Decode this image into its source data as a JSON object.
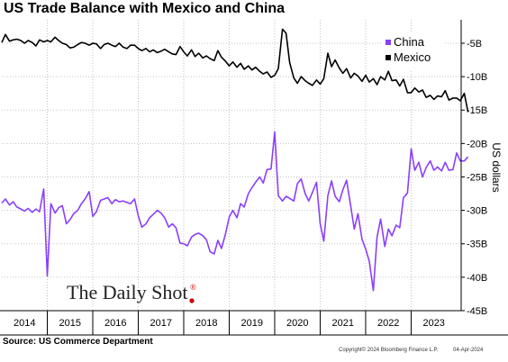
{
  "chart_data": {
    "type": "line",
    "title": "US Trade Balance with Mexico and China",
    "ylabel": "US dollars",
    "ylim": [
      -45,
      -1.5
    ],
    "x_range": [
      2014.0,
      2024.1
    ],
    "y_ticks": [
      {
        "value": -5,
        "label": "-5B"
      },
      {
        "value": -10,
        "label": "-10B"
      },
      {
        "value": -15,
        "label": "-15B"
      },
      {
        "value": -20,
        "label": "-20B"
      },
      {
        "value": -25,
        "label": "-25B"
      },
      {
        "value": -30,
        "label": "-30B"
      },
      {
        "value": -35,
        "label": "-35B"
      },
      {
        "value": -40,
        "label": "-40B"
      },
      {
        "value": -45,
        "label": "-45B"
      }
    ],
    "x_ticks": [
      {
        "value": 2014.5,
        "label": "2014"
      },
      {
        "value": 2015.5,
        "label": "2015"
      },
      {
        "value": 2016.5,
        "label": "2016"
      },
      {
        "value": 2017.5,
        "label": "2017"
      },
      {
        "value": 2018.5,
        "label": "2018"
      },
      {
        "value": 2019.5,
        "label": "2019"
      },
      {
        "value": 2020.5,
        "label": "2020"
      },
      {
        "value": 2021.5,
        "label": "2021"
      },
      {
        "value": 2022.5,
        "label": "2022"
      },
      {
        "value": 2023.5,
        "label": "2023"
      }
    ],
    "x_gridlines": [
      2015,
      2016,
      2017,
      2018,
      2019,
      2020,
      2021,
      2022,
      2023
    ],
    "grid": true,
    "legend_position": "top-right",
    "series": [
      {
        "name": "China",
        "color": "#8a3ffc",
        "points": [
          [
            2014.0,
            -28.9
          ],
          [
            2014.08,
            -28.3
          ],
          [
            2014.17,
            -29.2
          ],
          [
            2014.25,
            -28.7
          ],
          [
            2014.33,
            -29.5
          ],
          [
            2014.42,
            -29.8
          ],
          [
            2014.5,
            -30.1
          ],
          [
            2014.58,
            -29.7
          ],
          [
            2014.67,
            -30.3
          ],
          [
            2014.75,
            -29.8
          ],
          [
            2014.83,
            -30.2
          ],
          [
            2014.92,
            -26.8
          ],
          [
            2015.0,
            -39.8
          ],
          [
            2015.08,
            -29.0
          ],
          [
            2015.17,
            -30.4
          ],
          [
            2015.25,
            -29.6
          ],
          [
            2015.33,
            -29.3
          ],
          [
            2015.42,
            -32.0
          ],
          [
            2015.5,
            -31.4
          ],
          [
            2015.58,
            -30.5
          ],
          [
            2015.67,
            -30.0
          ],
          [
            2015.75,
            -29.0
          ],
          [
            2015.83,
            -28.3
          ],
          [
            2015.92,
            -27.2
          ],
          [
            2016.0,
            -30.9
          ],
          [
            2016.08,
            -30.2
          ],
          [
            2016.17,
            -28.5
          ],
          [
            2016.25,
            -28.3
          ],
          [
            2016.33,
            -28.1
          ],
          [
            2016.42,
            -29.0
          ],
          [
            2016.5,
            -28.4
          ],
          [
            2016.58,
            -28.7
          ],
          [
            2016.67,
            -28.6
          ],
          [
            2016.75,
            -28.8
          ],
          [
            2016.83,
            -29.0
          ],
          [
            2016.92,
            -28.3
          ],
          [
            2017.0,
            -30.8
          ],
          [
            2017.08,
            -32.5
          ],
          [
            2017.17,
            -32.0
          ],
          [
            2017.25,
            -31.1
          ],
          [
            2017.33,
            -30.6
          ],
          [
            2017.42,
            -30.0
          ],
          [
            2017.5,
            -30.4
          ],
          [
            2017.58,
            -31.1
          ],
          [
            2017.67,
            -32.5
          ],
          [
            2017.75,
            -32.0
          ],
          [
            2017.83,
            -32.6
          ],
          [
            2017.92,
            -34.9
          ],
          [
            2018.0,
            -35.0
          ],
          [
            2018.08,
            -35.3
          ],
          [
            2018.17,
            -34.0
          ],
          [
            2018.25,
            -33.6
          ],
          [
            2018.33,
            -33.4
          ],
          [
            2018.42,
            -33.8
          ],
          [
            2018.5,
            -34.4
          ],
          [
            2018.58,
            -36.2
          ],
          [
            2018.67,
            -36.5
          ],
          [
            2018.75,
            -34.5
          ],
          [
            2018.83,
            -35.7
          ],
          [
            2018.92,
            -33.5
          ],
          [
            2019.0,
            -31.0
          ],
          [
            2019.08,
            -30.0
          ],
          [
            2019.17,
            -31.1
          ],
          [
            2019.25,
            -29.0
          ],
          [
            2019.33,
            -29.5
          ],
          [
            2019.42,
            -27.5
          ],
          [
            2019.5,
            -26.6
          ],
          [
            2019.58,
            -25.8
          ],
          [
            2019.67,
            -25.0
          ],
          [
            2019.75,
            -25.9
          ],
          [
            2019.83,
            -23.9
          ],
          [
            2019.92,
            -23.8
          ],
          [
            2020.0,
            -18.3
          ],
          [
            2020.08,
            -27.8
          ],
          [
            2020.17,
            -28.6
          ],
          [
            2020.25,
            -27.9
          ],
          [
            2020.33,
            -28.2
          ],
          [
            2020.42,
            -28.6
          ],
          [
            2020.5,
            -26.0
          ],
          [
            2020.58,
            -25.3
          ],
          [
            2020.67,
            -27.5
          ],
          [
            2020.75,
            -28.6
          ],
          [
            2020.83,
            -27.3
          ],
          [
            2020.92,
            -25.8
          ],
          [
            2021.0,
            -32.0
          ],
          [
            2021.08,
            -34.6
          ],
          [
            2021.17,
            -27.8
          ],
          [
            2021.25,
            -25.6
          ],
          [
            2021.33,
            -27.9
          ],
          [
            2021.42,
            -28.7
          ],
          [
            2021.5,
            -26.9
          ],
          [
            2021.58,
            -25.5
          ],
          [
            2021.67,
            -29.3
          ],
          [
            2021.75,
            -32.8
          ],
          [
            2021.83,
            -30.5
          ],
          [
            2021.92,
            -34.3
          ],
          [
            2022.0,
            -35.8
          ],
          [
            2022.08,
            -37.6
          ],
          [
            2022.17,
            -42.0
          ],
          [
            2022.25,
            -34.0
          ],
          [
            2022.33,
            -31.3
          ],
          [
            2022.42,
            -35.4
          ],
          [
            2022.5,
            -32.8
          ],
          [
            2022.58,
            -33.8
          ],
          [
            2022.67,
            -32.2
          ],
          [
            2022.75,
            -32.6
          ],
          [
            2022.83,
            -28.1
          ],
          [
            2022.92,
            -27.4
          ],
          [
            2023.0,
            -20.8
          ],
          [
            2023.08,
            -24.0
          ],
          [
            2023.17,
            -22.8
          ],
          [
            2023.25,
            -25.0
          ],
          [
            2023.33,
            -23.6
          ],
          [
            2023.42,
            -22.6
          ],
          [
            2023.5,
            -24.0
          ],
          [
            2023.58,
            -23.5
          ],
          [
            2023.67,
            -24.1
          ],
          [
            2023.75,
            -22.8
          ],
          [
            2023.83,
            -24.0
          ],
          [
            2023.92,
            -23.9
          ],
          [
            2024.0,
            -21.4
          ],
          [
            2024.08,
            -22.6
          ],
          [
            2024.17,
            -22.6
          ],
          [
            2024.25,
            -22.0
          ]
        ]
      },
      {
        "name": "Mexico",
        "color": "#000000",
        "points": [
          [
            2014.0,
            -4.9
          ],
          [
            2014.08,
            -3.7
          ],
          [
            2014.17,
            -4.7
          ],
          [
            2014.25,
            -4.5
          ],
          [
            2014.33,
            -4.4
          ],
          [
            2014.42,
            -4.6
          ],
          [
            2014.5,
            -5.0
          ],
          [
            2014.58,
            -4.6
          ],
          [
            2014.67,
            -4.9
          ],
          [
            2014.75,
            -5.4
          ],
          [
            2014.83,
            -4.5
          ],
          [
            2014.92,
            -4.8
          ],
          [
            2015.0,
            -4.6
          ],
          [
            2015.08,
            -4.8
          ],
          [
            2015.17,
            -4.1
          ],
          [
            2015.25,
            -4.6
          ],
          [
            2015.33,
            -5.0
          ],
          [
            2015.42,
            -5.2
          ],
          [
            2015.5,
            -5.7
          ],
          [
            2015.58,
            -5.6
          ],
          [
            2015.67,
            -5.2
          ],
          [
            2015.75,
            -4.9
          ],
          [
            2015.83,
            -5.0
          ],
          [
            2015.92,
            -5.3
          ],
          [
            2016.0,
            -5.0
          ],
          [
            2016.08,
            -5.1
          ],
          [
            2016.17,
            -5.8
          ],
          [
            2016.25,
            -5.2
          ],
          [
            2016.33,
            -5.0
          ],
          [
            2016.42,
            -5.3
          ],
          [
            2016.5,
            -5.5
          ],
          [
            2016.58,
            -5.0
          ],
          [
            2016.67,
            -5.6
          ],
          [
            2016.75,
            -5.8
          ],
          [
            2016.83,
            -5.3
          ],
          [
            2016.92,
            -5.3
          ],
          [
            2017.0,
            -5.8
          ],
          [
            2017.08,
            -6.1
          ],
          [
            2017.17,
            -5.8
          ],
          [
            2017.25,
            -6.3
          ],
          [
            2017.33,
            -6.0
          ],
          [
            2017.42,
            -6.4
          ],
          [
            2017.5,
            -6.2
          ],
          [
            2017.58,
            -5.9
          ],
          [
            2017.67,
            -6.3
          ],
          [
            2017.75,
            -6.6
          ],
          [
            2017.83,
            -6.7
          ],
          [
            2017.92,
            -5.5
          ],
          [
            2018.0,
            -6.3
          ],
          [
            2018.08,
            -6.9
          ],
          [
            2018.17,
            -6.0
          ],
          [
            2018.25,
            -7.0
          ],
          [
            2018.33,
            -6.5
          ],
          [
            2018.42,
            -7.2
          ],
          [
            2018.5,
            -6.9
          ],
          [
            2018.58,
            -7.3
          ],
          [
            2018.67,
            -7.6
          ],
          [
            2018.75,
            -6.1
          ],
          [
            2018.83,
            -7.1
          ],
          [
            2018.92,
            -7.7
          ],
          [
            2019.0,
            -8.4
          ],
          [
            2019.08,
            -7.8
          ],
          [
            2019.17,
            -8.6
          ],
          [
            2019.25,
            -8.0
          ],
          [
            2019.33,
            -8.9
          ],
          [
            2019.42,
            -8.4
          ],
          [
            2019.5,
            -9.0
          ],
          [
            2019.58,
            -8.6
          ],
          [
            2019.67,
            -9.2
          ],
          [
            2019.75,
            -9.6
          ],
          [
            2019.83,
            -9.3
          ],
          [
            2019.92,
            -10.1
          ],
          [
            2020.0,
            -9.8
          ],
          [
            2020.08,
            -8.8
          ],
          [
            2020.17,
            -2.9
          ],
          [
            2020.25,
            -3.5
          ],
          [
            2020.33,
            -7.9
          ],
          [
            2020.42,
            -10.2
          ],
          [
            2020.5,
            -11.0
          ],
          [
            2020.58,
            -10.0
          ],
          [
            2020.67,
            -10.6
          ],
          [
            2020.75,
            -11.0
          ],
          [
            2020.83,
            -11.3
          ],
          [
            2020.92,
            -10.5
          ],
          [
            2021.0,
            -11.1
          ],
          [
            2021.08,
            -10.3
          ],
          [
            2021.17,
            -6.5
          ],
          [
            2021.25,
            -8.5
          ],
          [
            2021.33,
            -7.5
          ],
          [
            2021.42,
            -8.7
          ],
          [
            2021.5,
            -9.5
          ],
          [
            2021.58,
            -8.8
          ],
          [
            2021.67,
            -10.2
          ],
          [
            2021.75,
            -9.5
          ],
          [
            2021.83,
            -9.9
          ],
          [
            2021.92,
            -10.7
          ],
          [
            2022.0,
            -9.8
          ],
          [
            2022.08,
            -10.8
          ],
          [
            2022.17,
            -10.3
          ],
          [
            2022.25,
            -11.2
          ],
          [
            2022.33,
            -10.0
          ],
          [
            2022.42,
            -10.5
          ],
          [
            2022.5,
            -9.2
          ],
          [
            2022.58,
            -10.6
          ],
          [
            2022.67,
            -10.5
          ],
          [
            2022.75,
            -11.4
          ],
          [
            2022.83,
            -10.4
          ],
          [
            2022.92,
            -12.4
          ],
          [
            2023.0,
            -12.4
          ],
          [
            2023.08,
            -11.7
          ],
          [
            2023.17,
            -12.3
          ],
          [
            2023.25,
            -12.0
          ],
          [
            2023.33,
            -13.1
          ],
          [
            2023.42,
            -12.8
          ],
          [
            2023.5,
            -13.4
          ],
          [
            2023.58,
            -12.9
          ],
          [
            2023.67,
            -13.0
          ],
          [
            2023.75,
            -12.1
          ],
          [
            2023.83,
            -13.5
          ],
          [
            2023.92,
            -13.2
          ],
          [
            2024.0,
            -13.2
          ],
          [
            2024.08,
            -13.6
          ],
          [
            2024.17,
            -12.5
          ],
          [
            2024.25,
            -15.3
          ]
        ]
      }
    ]
  },
  "footer": {
    "source": "Source: US Commerce Department",
    "copyright": "Copyright© 2024 Bloomberg Finance L.P.",
    "date": "04-Apr-2024"
  },
  "watermark": "The Daily Shot",
  "watermark_mark": "®"
}
